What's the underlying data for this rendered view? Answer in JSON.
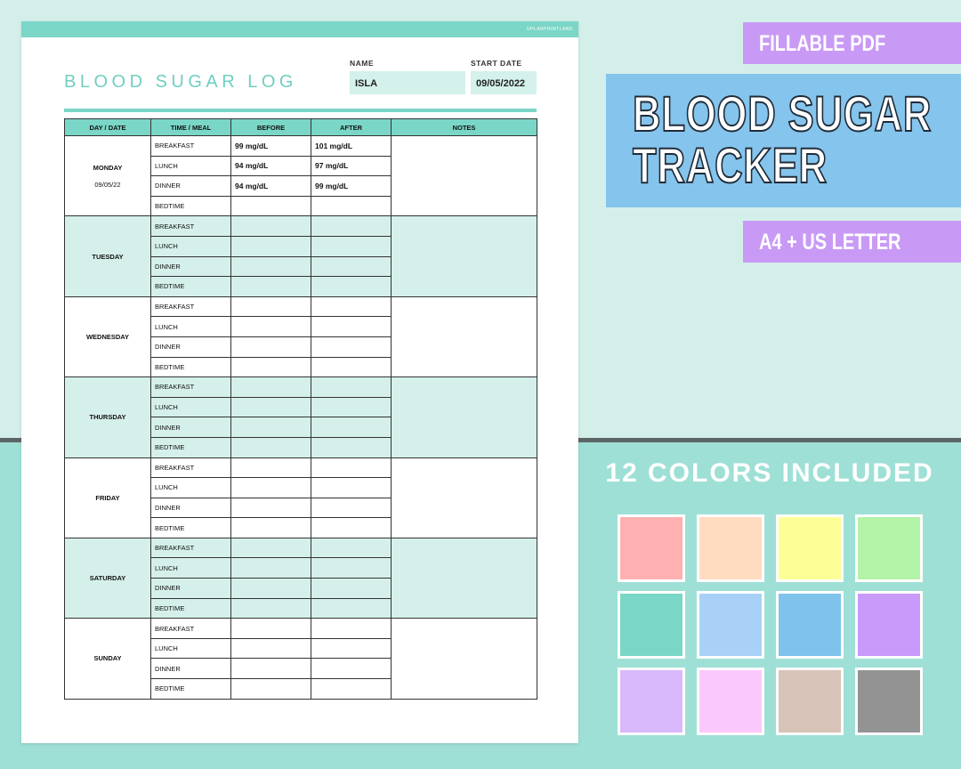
{
  "page": {
    "brand": "UPLANPRINTLAND",
    "title": "BLOOD SUGAR LOG",
    "name_label": "NAME",
    "name": "ISLA",
    "start_label": "START DATE",
    "start_date": "09/05/2022"
  },
  "table": {
    "headers": [
      "DAY / DATE",
      "TIME / MEAL",
      "BEFORE",
      "AFTER",
      "NOTES"
    ],
    "days": [
      {
        "day": "MONDAY",
        "date": "09/05/22",
        "rows": [
          {
            "meal": "BREAKFAST",
            "before": "99 mg/dL",
            "after": "101 mg/dL"
          },
          {
            "meal": "LUNCH",
            "before": "94 mg/dL",
            "after": "97 mg/dL"
          },
          {
            "meal": "DINNER",
            "before": "94 mg/dL",
            "after": "99 mg/dL"
          },
          {
            "meal": "BEDTIME"
          }
        ]
      },
      {
        "day": "TUESDAY",
        "rows": [
          {
            "meal": "BREAKFAST"
          },
          {
            "meal": "LUNCH"
          },
          {
            "meal": "DINNER"
          },
          {
            "meal": "BEDTIME"
          }
        ]
      },
      {
        "day": "WEDNESDAY",
        "rows": [
          {
            "meal": "BREAKFAST"
          },
          {
            "meal": "LUNCH"
          },
          {
            "meal": "DINNER"
          },
          {
            "meal": "BEDTIME"
          }
        ]
      },
      {
        "day": "THURSDAY",
        "rows": [
          {
            "meal": "BREAKFAST"
          },
          {
            "meal": "LUNCH"
          },
          {
            "meal": "DINNER"
          },
          {
            "meal": "BEDTIME"
          }
        ]
      },
      {
        "day": "FRIDAY",
        "rows": [
          {
            "meal": "BREAKFAST"
          },
          {
            "meal": "LUNCH"
          },
          {
            "meal": "DINNER"
          },
          {
            "meal": "BEDTIME"
          }
        ]
      },
      {
        "day": "SATURDAY",
        "rows": [
          {
            "meal": "BREAKFAST"
          },
          {
            "meal": "LUNCH"
          },
          {
            "meal": "DINNER"
          },
          {
            "meal": "BEDTIME"
          }
        ]
      },
      {
        "day": "SUNDAY",
        "rows": [
          {
            "meal": "BREAKFAST"
          },
          {
            "meal": "LUNCH"
          },
          {
            "meal": "DINNER"
          },
          {
            "meal": "BEDTIME"
          }
        ]
      }
    ]
  },
  "side": {
    "badge_top": "FILLABLE PDF",
    "heading": [
      "BLOOD SUGAR",
      "TRACKER"
    ],
    "badge_bottom": "A4 + US LETTER",
    "colors_heading": "12 COLORS INCLUDED",
    "swatches": [
      "#ffb0b0",
      "#ffdcc0",
      "#fbff95",
      "#b3f3a7",
      "#7ad6c6",
      "#a9d1f7",
      "#7fc3ec",
      "#c99af9",
      "#d9b9fb",
      "#fbc8fb",
      "#d8c3b9",
      "#939393"
    ]
  }
}
